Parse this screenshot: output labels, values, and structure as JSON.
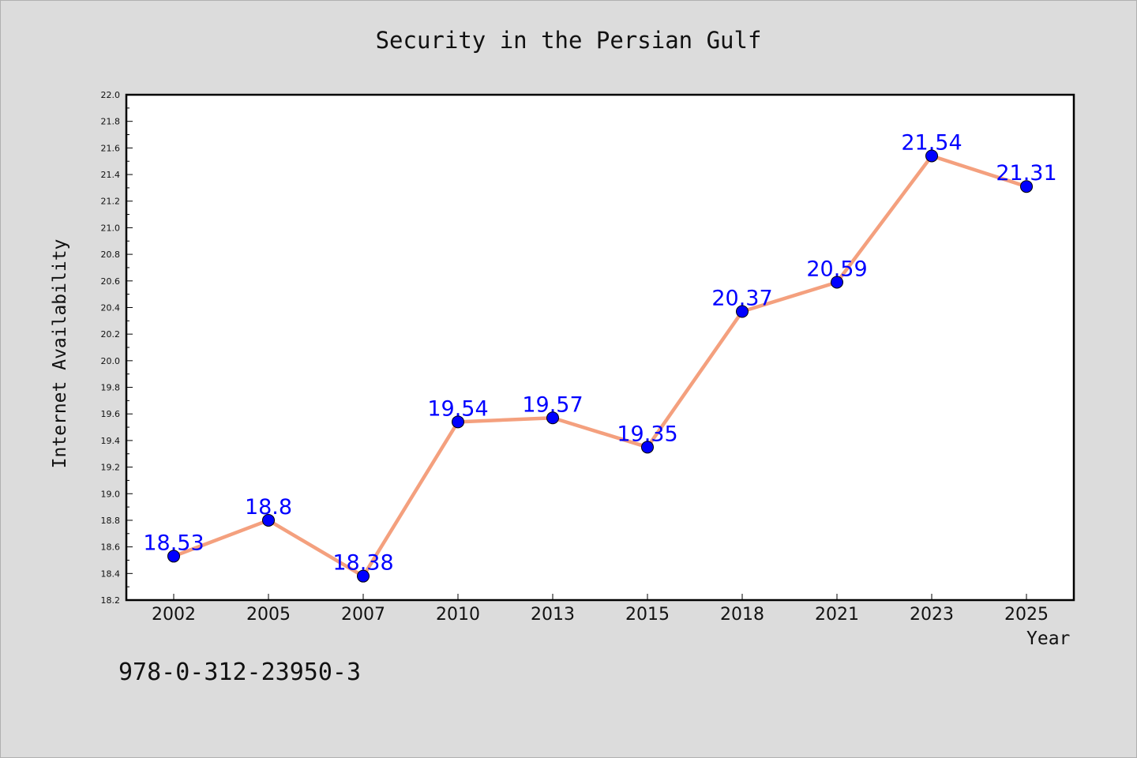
{
  "chart_data": {
    "type": "line",
    "title": "Security in the Persian Gulf",
    "xlabel": "Year",
    "ylabel": "Internet Availability",
    "categories": [
      "2002",
      "2005",
      "2007",
      "2010",
      "2013",
      "2015",
      "2018",
      "2021",
      "2023",
      "2025"
    ],
    "values": [
      18.53,
      18.8,
      18.38,
      19.54,
      19.57,
      19.35,
      20.37,
      20.59,
      21.54,
      21.31
    ],
    "data_labels": [
      "18.53",
      "18.8",
      "18.38",
      "19.54",
      "19.57",
      "19.35",
      "20.37",
      "20.59",
      "21.54",
      "21.31"
    ],
    "ylim": [
      18.2,
      22.0
    ],
    "yticks": [
      "18.2",
      "18.4",
      "18.6",
      "18.8",
      "19.0",
      "19.2",
      "19.4",
      "19.6",
      "19.8",
      "20.0",
      "20.2",
      "20.4",
      "20.6",
      "20.8",
      "21.0",
      "21.2",
      "21.4",
      "21.6",
      "21.8",
      "22.0"
    ],
    "grid": false,
    "line_color": "#f4a07e",
    "marker_color": "#0000ff",
    "label_color": "#0000ff"
  },
  "footer": {
    "code": "978-0-312-23950-3"
  }
}
